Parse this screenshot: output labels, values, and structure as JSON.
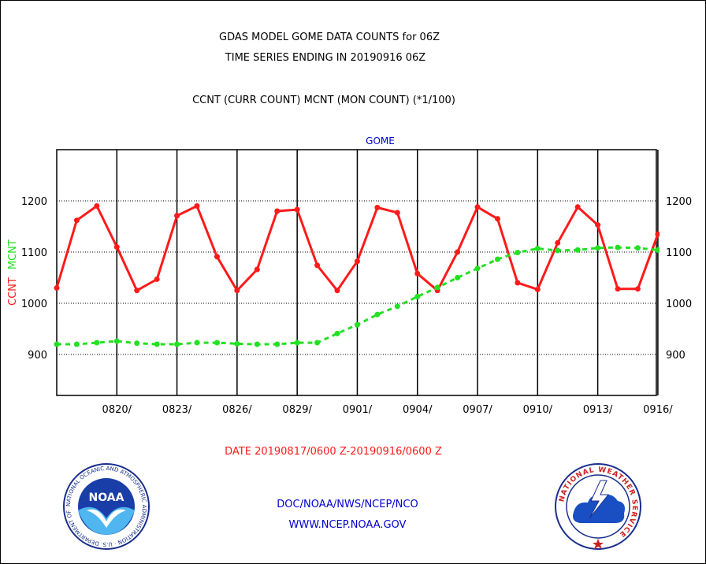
{
  "header": {
    "title_line1": "GDAS MODEL GOME DATA COUNTS for 06Z",
    "title_line2": "TIME SERIES ENDING IN 20190916 06Z",
    "subtitle": "CCNT (CURR COUNT) MCNT (MON COUNT) (*1/100)"
  },
  "footer": {
    "date_range": "DATE 20190817/0600 Z-20190916/0600 Z",
    "org": "DOC/NOAA/NWS/NCEP/NCO",
    "url": "WWW.NCEP.NOAA.GOV"
  },
  "logos": {
    "left_text": "NOAA",
    "left_ring": "NATIONAL OCEANIC AND ATMOSPHERIC ADMINISTRATION · U.S. DEPARTMENT OF COMMERCE",
    "right_ring": "NATIONAL WEATHER SERVICE"
  },
  "colors": {
    "ccnt": "#ff1a1a",
    "mcnt": "#22e022",
    "axis_title": "#0000cc",
    "footer_date": "#ff1a1a",
    "footer_links": "#0000cc"
  },
  "chart_data": {
    "type": "line",
    "title": "GOME",
    "ylabel_left_parts": [
      "CCNT",
      "MCNT"
    ],
    "ylim": [
      820,
      1300
    ],
    "yticks": [
      900,
      1000,
      1100,
      1200
    ],
    "x_start_day": 0,
    "x_end_day": 30,
    "x_tick_labels": [
      "0820/",
      "0823/",
      "0826/",
      "0829/",
      "0901/",
      "0904/",
      "0907/",
      "0910/",
      "0913/",
      "0916/"
    ],
    "x_tick_days": [
      3,
      6,
      9,
      12,
      15,
      18,
      21,
      24,
      27,
      30
    ],
    "grid": "horizontal dotted at y ticks, vertical solid at x ticks",
    "series": [
      {
        "name": "CCNT",
        "style": "solid",
        "days": [
          0,
          1,
          2,
          3,
          4,
          5,
          6,
          7,
          8,
          9,
          10,
          11,
          12,
          13,
          14,
          15,
          16,
          17,
          18,
          19,
          20,
          21,
          22,
          23,
          24,
          25,
          26,
          27,
          28,
          29,
          30
        ],
        "values": [
          1030,
          1162,
          1190,
          1110,
          1025,
          1047,
          1171,
          1190,
          1091,
          1025,
          1066,
          1180,
          1183,
          1074,
          1025,
          1082,
          1187,
          1177,
          1058,
          1025,
          1100,
          1188,
          1165,
          1040,
          1027,
          1118,
          1188,
          1153,
          1028,
          1028,
          1135
        ]
      },
      {
        "name": "MCNT",
        "style": "dashed",
        "days": [
          0,
          1,
          2,
          3,
          4,
          5,
          6,
          7,
          8,
          9,
          10,
          11,
          12,
          13,
          14,
          15,
          16,
          17,
          18,
          19,
          20,
          21,
          22,
          23,
          24,
          25,
          26,
          27,
          28,
          29,
          30
        ],
        "values": [
          920,
          920,
          923,
          926,
          922,
          920,
          920,
          923,
          923,
          921,
          920,
          920,
          923,
          923,
          941,
          958,
          978,
          994,
          1013,
          1031,
          1050,
          1068,
          1086,
          1099,
          1107,
          1103,
          1104,
          1108,
          1109,
          1108,
          1104
        ]
      }
    ]
  }
}
